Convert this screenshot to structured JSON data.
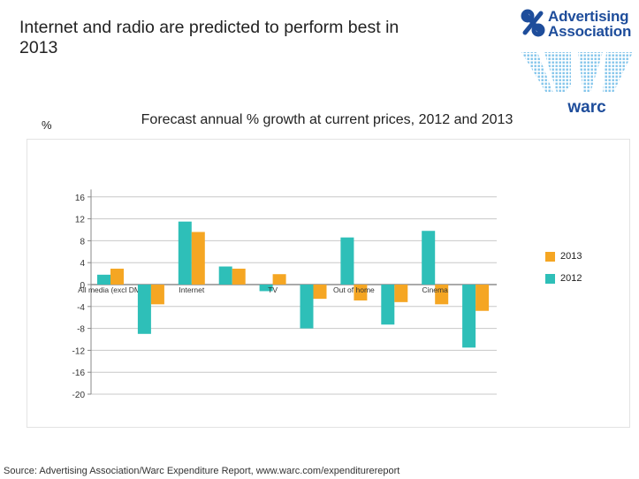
{
  "slide": {
    "title": "Internet and radio are predicted to perform best in 2013",
    "source": "Source: Advertising Association/Warc Expenditure Report, www.warc.com/expenditurereport"
  },
  "logos": {
    "aa_line1": "Advertising",
    "aa_line2": "Association",
    "warc": "warc"
  },
  "colors": {
    "series_2013": "#f5a623",
    "series_2012": "#2ebfb8",
    "aa_blue": "#1e4d9b",
    "warc_blue": "#7fc3ea"
  },
  "chart_data": {
    "type": "bar",
    "title": "Forecast annual % growth at current prices, 2012 and 2013",
    "ylabel": "%",
    "categories": [
      "All media (excl DM)",
      "",
      "Internet",
      "",
      "TV",
      "",
      "Out of home",
      "",
      "Cinema",
      ""
    ],
    "series": [
      {
        "name": "2012",
        "values": [
          1.8,
          -9.0,
          11.5,
          3.3,
          -1.2,
          -8.0,
          8.6,
          -7.3,
          9.8,
          -11.5
        ]
      },
      {
        "name": "2013",
        "values": [
          2.9,
          -3.6,
          9.6,
          2.9,
          1.9,
          -2.6,
          -2.9,
          -3.2,
          -3.6,
          -4.8
        ]
      }
    ],
    "ylim": [
      -20,
      18
    ],
    "yticks": [
      16,
      12,
      8,
      4,
      0,
      -4,
      -8,
      -12,
      -16,
      -20
    ],
    "grid": true,
    "legend": "right"
  }
}
